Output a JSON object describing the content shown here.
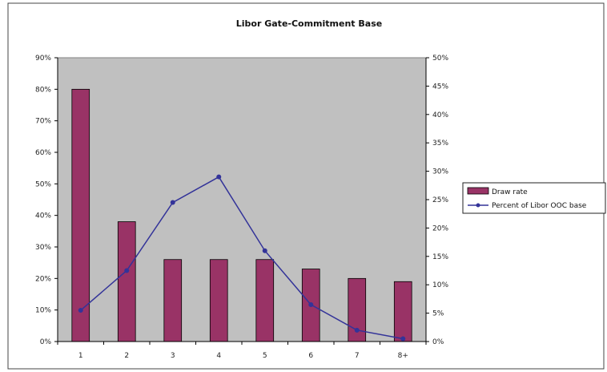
{
  "chart_data": {
    "type": "bar",
    "title": "Libor Gate-Commitment Base",
    "categories": [
      "1",
      "2",
      "3",
      "4",
      "5",
      "6",
      "7",
      "8+"
    ],
    "series": [
      {
        "name": "Draw rate",
        "type": "bar",
        "axis": "left",
        "color": "#993366",
        "values": [
          80,
          38,
          26,
          26,
          26,
          23,
          20,
          19
        ]
      },
      {
        "name": "Percent of Libor OOC base",
        "type": "line",
        "axis": "right",
        "color": "#333399",
        "values": [
          5.5,
          12.5,
          24.5,
          29,
          16,
          6.5,
          2,
          0.5
        ]
      }
    ],
    "y_left": {
      "range": [
        0,
        90
      ],
      "ticks": [
        "0%",
        "10%",
        "20%",
        "30%",
        "40%",
        "50%",
        "60%",
        "70%",
        "80%",
        "90%"
      ]
    },
    "y_right": {
      "range": [
        0,
        50
      ],
      "ticks": [
        "0%",
        "5%",
        "10%",
        "15%",
        "20%",
        "25%",
        "30%",
        "35%",
        "40%",
        "45%",
        "50%"
      ]
    },
    "grid": false,
    "plot_background": "#c0c0c0",
    "legend_position": "right"
  }
}
